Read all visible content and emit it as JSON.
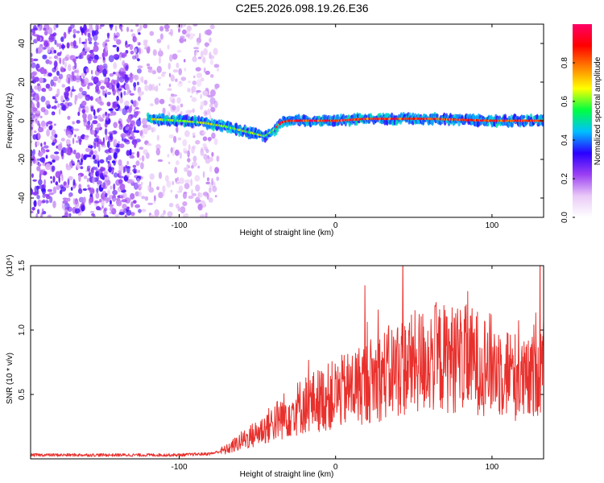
{
  "chart_data": [
    {
      "type": "heatmap",
      "title": "C2E5.2026.098.19.26.E36",
      "xlabel": "Height of straight line (km)",
      "ylabel": "Frequency (Hz)",
      "xlim": [
        -195,
        133
      ],
      "ylim": [
        -50,
        50
      ],
      "xticks": [
        -100,
        0,
        100
      ],
      "xtick_labels": [
        "-100",
        "0",
        "100"
      ],
      "yticks": [
        -40,
        -20,
        0,
        20,
        40
      ],
      "ytick_labels": [
        "-40",
        "-20",
        "0",
        "20",
        "40"
      ],
      "colorbar": {
        "label": "Normalized spectral amplitude",
        "range": [
          0,
          1
        ],
        "ticks": [
          0.0,
          0.2,
          0.4,
          0.6,
          0.8
        ],
        "tick_labels": [
          "0.0",
          "0.2",
          "0.4",
          "0.6",
          "0.8"
        ],
        "colormap": [
          "#ffffff",
          "#e9c9f7",
          "#9b3ff2",
          "#2a00ff",
          "#00c0ff",
          "#00ff40",
          "#ffff00",
          "#ff8000",
          "#ff0000",
          "#ff0066"
        ]
      },
      "features": [
        {
          "name": "broadband noise",
          "x_range": [
            -195,
            -75
          ],
          "freq_range": [
            -50,
            50
          ]
        },
        {
          "name": "signal line",
          "points": [
            [
              -120,
              1
            ],
            [
              -100,
              0
            ],
            [
              -85,
              -1
            ],
            [
              -70,
              -3
            ],
            [
              -55,
              -6
            ],
            [
              -45,
              -8
            ],
            [
              -38,
              -4
            ],
            [
              -35,
              -1
            ],
            [
              -30,
              0
            ],
            [
              0,
              0
            ],
            [
              20,
              1
            ],
            [
              60,
              1
            ],
            [
              100,
              0
            ],
            [
              133,
              0
            ]
          ]
        }
      ]
    },
    {
      "type": "line",
      "xlabel": "Height of straight line (km)",
      "ylabel": "SNR (10 * v/v)",
      "multiplier_label": "(x10⁴)",
      "xlim": [
        -195,
        133
      ],
      "ylim": [
        0,
        1.5
      ],
      "xticks": [
        -100,
        0,
        100
      ],
      "xtick_labels": [
        "-100",
        "0",
        "100"
      ],
      "yticks": [
        0.5,
        1.0,
        1.5
      ],
      "ytick_labels": [
        "0.5",
        "1.0",
        "1.5"
      ],
      "series": [
        {
          "name": "SNR",
          "color": "#e8302c",
          "envelope": {
            "x": [
              -195,
              -100,
              -80,
              -70,
              -60,
              -50,
              -40,
              -30,
              -20,
              -10,
              0,
              20,
              40,
              60,
              80,
              100,
              110,
              120,
              125,
              128,
              133
            ],
            "y": [
              0.03,
              0.03,
              0.04,
              0.07,
              0.14,
              0.2,
              0.28,
              0.36,
              0.42,
              0.46,
              0.5,
              0.6,
              0.7,
              0.78,
              0.78,
              0.73,
              0.68,
              0.6,
              0.6,
              0.75,
              0.72
            ]
          }
        }
      ]
    }
  ]
}
